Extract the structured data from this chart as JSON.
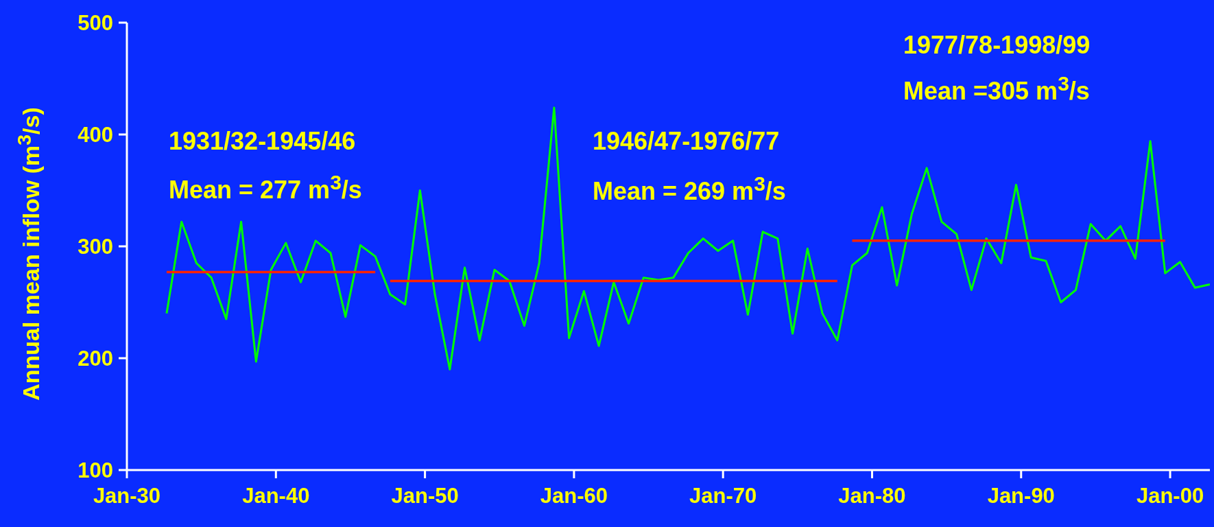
{
  "chart_data": {
    "type": "line",
    "ylabel": "Annual mean inflow (m$^{3}$/s)",
    "series": [
      {
        "color": "#00ff00",
        "x": [
          "1932-09",
          "1933-09",
          "1934-09",
          "1935-09",
          "1936-09",
          "1937-09",
          "1938-09",
          "1939-09",
          "1940-09",
          "1941-09",
          "1942-09",
          "1943-09",
          "1944-09",
          "1945-09",
          "1946-09",
          "1947-09",
          "1948-09",
          "1949-09",
          "1950-09",
          "1951-09",
          "1952-09",
          "1953-09",
          "1954-09",
          "1955-09",
          "1956-09",
          "1957-09",
          "1958-09",
          "1959-09",
          "1960-09",
          "1961-09",
          "1962-09",
          "1963-09",
          "1964-09",
          "1965-09",
          "1966-09",
          "1967-09",
          "1968-09",
          "1969-09",
          "1970-09",
          "1971-09",
          "1972-09",
          "1973-09",
          "1974-09",
          "1975-09",
          "1976-09",
          "1977-09",
          "1978-09",
          "1979-09",
          "1980-09",
          "1981-09",
          "1982-09",
          "1983-09",
          "1984-09",
          "1985-09",
          "1986-09",
          "1987-09",
          "1988-09",
          "1989-09",
          "1990-09",
          "1991-09",
          "1992-09",
          "1993-09",
          "1994-09",
          "1995-09",
          "1996-09",
          "1997-09",
          "1998-09",
          "1999-09",
          "2000-09",
          "2001-09",
          "2002-09"
        ],
        "values": [
          240,
          322,
          285,
          272,
          235,
          322,
          197,
          279,
          303,
          268,
          305,
          294,
          237,
          301,
          291,
          257,
          248,
          350,
          257,
          190,
          281,
          216,
          279,
          269,
          229,
          285,
          424,
          218,
          260,
          211,
          268,
          231,
          272,
          270,
          272,
          294,
          307,
          296,
          305,
          239,
          313,
          307,
          222,
          298,
          240,
          216,
          283,
          294,
          335,
          265,
          329,
          370,
          322,
          311,
          261,
          307,
          285,
          355,
          290,
          287,
          250,
          261,
          320,
          305,
          318,
          289,
          394,
          276,
          286,
          263,
          266
        ]
      },
      {
        "type": "line",
        "color": "#ff2200",
        "x": [
          "1932-09",
          "1946-09"
        ],
        "values": [
          277,
          277
        ]
      },
      {
        "type": "line",
        "color": "#ff2200",
        "x": [
          "1947-09",
          "1977-09"
        ],
        "values": [
          269,
          269
        ]
      },
      {
        "type": "line",
        "color": "#ff2200",
        "x": [
          "1978-09",
          "1999-09"
        ],
        "values": [
          305,
          305
        ]
      }
    ],
    "xlim": [
      "1930-01",
      "2002-09"
    ],
    "xticks": [
      {
        "value": "1930-01",
        "label": "Jan-30"
      },
      {
        "value": "1940-01",
        "label": "Jan-40"
      },
      {
        "value": "1950-01",
        "label": "Jan-50"
      },
      {
        "value": "1960-01",
        "label": "Jan-60"
      },
      {
        "value": "1970-01",
        "label": "Jan-70"
      },
      {
        "value": "1980-01",
        "label": "Jan-80"
      },
      {
        "value": "1990-01",
        "label": "Jan-90"
      },
      {
        "value": "2000-01",
        "label": "Jan-00"
      }
    ],
    "ylim": [
      100,
      500
    ],
    "yticks": [
      100,
      200,
      300,
      400,
      500
    ],
    "annotations": [
      "1931/32-1945/46",
      "Mean = 277 m$^{3}$/s",
      "1946/47-1976/77",
      "Mean = 269 m$^{3}$/s",
      "1977/78-1998/99",
      "Mean =305 m$^{3}$/s"
    ]
  }
}
